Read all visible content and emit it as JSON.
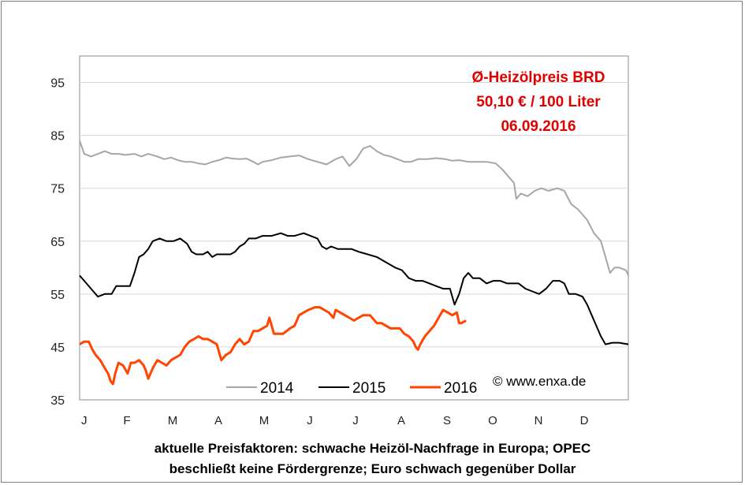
{
  "chart_data": {
    "type": "line",
    "yticks": [
      35,
      45,
      55,
      65,
      75,
      85,
      95
    ],
    "ylim": [
      35,
      100
    ],
    "months": [
      "J",
      "F",
      "M",
      "A",
      "M",
      "J",
      "J",
      "A",
      "S",
      "O",
      "N",
      "D"
    ],
    "grid": "horizontal",
    "legend_position": "bottom",
    "annotation": [
      "Ø-Heizölpreis BRD",
      "50,10 € / 100 Liter",
      "06.09.2016"
    ],
    "copyright": "© www.enxa.de",
    "series": [
      {
        "name": "2014",
        "color": "#a6a6a6",
        "points": [
          [
            0,
            84
          ],
          [
            0.1,
            81.5
          ],
          [
            0.25,
            81
          ],
          [
            0.4,
            81.5
          ],
          [
            0.55,
            82
          ],
          [
            0.7,
            81.5
          ],
          [
            0.85,
            81.5
          ],
          [
            1,
            81.3
          ],
          [
            1.2,
            81.5
          ],
          [
            1.35,
            81
          ],
          [
            1.5,
            81.5
          ],
          [
            1.7,
            81
          ],
          [
            1.85,
            80.5
          ],
          [
            2,
            80.8
          ],
          [
            2.15,
            80.3
          ],
          [
            2.3,
            80
          ],
          [
            2.45,
            80
          ],
          [
            2.6,
            79.7
          ],
          [
            2.75,
            79.5
          ],
          [
            2.9,
            80
          ],
          [
            3.05,
            80.3
          ],
          [
            3.2,
            80.8
          ],
          [
            3.35,
            80.6
          ],
          [
            3.5,
            80.5
          ],
          [
            3.65,
            80.6
          ],
          [
            3.8,
            80
          ],
          [
            3.9,
            79.5
          ],
          [
            4,
            80
          ],
          [
            4.2,
            80.3
          ],
          [
            4.4,
            80.8
          ],
          [
            4.6,
            81
          ],
          [
            4.8,
            81.2
          ],
          [
            5,
            80.5
          ],
          [
            5.2,
            80
          ],
          [
            5.4,
            79.5
          ],
          [
            5.6,
            80.5
          ],
          [
            5.75,
            81
          ],
          [
            5.9,
            79.2
          ],
          [
            6.05,
            80.5
          ],
          [
            6.2,
            82.5
          ],
          [
            6.35,
            83
          ],
          [
            6.5,
            82
          ],
          [
            6.65,
            81.3
          ],
          [
            6.8,
            81
          ],
          [
            6.95,
            80.5
          ],
          [
            7.1,
            80
          ],
          [
            7.25,
            80
          ],
          [
            7.4,
            80.5
          ],
          [
            7.6,
            80.5
          ],
          [
            7.8,
            80.7
          ],
          [
            8,
            80.5
          ],
          [
            8.15,
            80.2
          ],
          [
            8.3,
            80.3
          ],
          [
            8.5,
            80
          ],
          [
            8.7,
            80
          ],
          [
            8.9,
            80
          ],
          [
            9.1,
            79.7
          ],
          [
            9.25,
            78.5
          ],
          [
            9.4,
            77
          ],
          [
            9.5,
            76
          ],
          [
            9.55,
            73
          ],
          [
            9.65,
            74
          ],
          [
            9.8,
            73.5
          ],
          [
            9.95,
            74.5
          ],
          [
            10.1,
            75
          ],
          [
            10.25,
            74.5
          ],
          [
            10.45,
            75
          ],
          [
            10.6,
            74.5
          ],
          [
            10.75,
            72
          ],
          [
            10.9,
            71
          ],
          [
            11.1,
            69
          ],
          [
            11.25,
            66.5
          ],
          [
            11.4,
            65
          ],
          [
            11.5,
            62
          ],
          [
            11.6,
            59
          ],
          [
            11.7,
            60
          ],
          [
            11.8,
            60
          ],
          [
            11.95,
            59.5
          ],
          [
            12,
            58.5
          ]
        ]
      },
      {
        "name": "2015",
        "color": "#000000",
        "points": [
          [
            0,
            58.5
          ],
          [
            0.15,
            57
          ],
          [
            0.3,
            55.5
          ],
          [
            0.4,
            54.5
          ],
          [
            0.55,
            55
          ],
          [
            0.7,
            55
          ],
          [
            0.8,
            56.5
          ],
          [
            0.95,
            56.5
          ],
          [
            1.1,
            56.5
          ],
          [
            1.2,
            59
          ],
          [
            1.3,
            62
          ],
          [
            1.4,
            62.5
          ],
          [
            1.5,
            63.5
          ],
          [
            1.6,
            65
          ],
          [
            1.75,
            65.5
          ],
          [
            1.9,
            65
          ],
          [
            2.05,
            65
          ],
          [
            2.2,
            65.5
          ],
          [
            2.35,
            64.5
          ],
          [
            2.45,
            63
          ],
          [
            2.55,
            62.5
          ],
          [
            2.7,
            62.5
          ],
          [
            2.8,
            63
          ],
          [
            2.9,
            62
          ],
          [
            3,
            62.5
          ],
          [
            3.1,
            62.5
          ],
          [
            3.2,
            62.5
          ],
          [
            3.3,
            62.5
          ],
          [
            3.4,
            63
          ],
          [
            3.5,
            64
          ],
          [
            3.6,
            64.5
          ],
          [
            3.7,
            65.5
          ],
          [
            3.85,
            65.5
          ],
          [
            4,
            66
          ],
          [
            4.2,
            66
          ],
          [
            4.4,
            66.5
          ],
          [
            4.55,
            66
          ],
          [
            4.7,
            66
          ],
          [
            4.9,
            66.5
          ],
          [
            5.05,
            66
          ],
          [
            5.2,
            65.5
          ],
          [
            5.3,
            64
          ],
          [
            5.4,
            63.5
          ],
          [
            5.5,
            64
          ],
          [
            5.65,
            63.5
          ],
          [
            5.8,
            63.5
          ],
          [
            5.95,
            63.5
          ],
          [
            6.1,
            63
          ],
          [
            6.3,
            62.5
          ],
          [
            6.5,
            62
          ],
          [
            6.7,
            61
          ],
          [
            6.9,
            60
          ],
          [
            7.05,
            59.5
          ],
          [
            7.2,
            58
          ],
          [
            7.35,
            57.5
          ],
          [
            7.5,
            57.5
          ],
          [
            7.65,
            57
          ],
          [
            7.8,
            56.5
          ],
          [
            7.95,
            56
          ],
          [
            8.1,
            56
          ],
          [
            8.2,
            53
          ],
          [
            8.3,
            55
          ],
          [
            8.4,
            58
          ],
          [
            8.5,
            59
          ],
          [
            8.6,
            58
          ],
          [
            8.75,
            58
          ],
          [
            8.9,
            57
          ],
          [
            9.05,
            57.5
          ],
          [
            9.2,
            57.5
          ],
          [
            9.35,
            57
          ],
          [
            9.5,
            57
          ],
          [
            9.6,
            57
          ],
          [
            9.75,
            56
          ],
          [
            9.9,
            55.5
          ],
          [
            10.05,
            55
          ],
          [
            10.2,
            56
          ],
          [
            10.35,
            57.5
          ],
          [
            10.5,
            57.5
          ],
          [
            10.6,
            57
          ],
          [
            10.7,
            55
          ],
          [
            10.85,
            55
          ],
          [
            11,
            54.5
          ],
          [
            11.1,
            53
          ],
          [
            11.2,
            51
          ],
          [
            11.3,
            49
          ],
          [
            11.4,
            47
          ],
          [
            11.5,
            45.5
          ],
          [
            11.65,
            45.8
          ],
          [
            11.8,
            45.8
          ],
          [
            12,
            45.5
          ]
        ]
      },
      {
        "name": "2016",
        "color": "#ff4500",
        "points": [
          [
            0,
            45.5
          ],
          [
            0.1,
            46
          ],
          [
            0.2,
            46
          ],
          [
            0.28,
            44.5
          ],
          [
            0.35,
            43.5
          ],
          [
            0.45,
            42.5
          ],
          [
            0.55,
            41
          ],
          [
            0.62,
            40
          ],
          [
            0.68,
            38.5
          ],
          [
            0.73,
            38
          ],
          [
            0.78,
            40
          ],
          [
            0.85,
            42
          ],
          [
            0.95,
            41.5
          ],
          [
            1.05,
            40
          ],
          [
            1.12,
            42
          ],
          [
            1.2,
            42
          ],
          [
            1.3,
            42.5
          ],
          [
            1.4,
            41.5
          ],
          [
            1.45,
            40.5
          ],
          [
            1.5,
            39
          ],
          [
            1.6,
            41
          ],
          [
            1.7,
            42.5
          ],
          [
            1.8,
            42
          ],
          [
            1.9,
            41.5
          ],
          [
            2,
            42.5
          ],
          [
            2.1,
            43
          ],
          [
            2.2,
            43.5
          ],
          [
            2.3,
            45
          ],
          [
            2.4,
            46
          ],
          [
            2.5,
            46.5
          ],
          [
            2.6,
            47
          ],
          [
            2.7,
            46.5
          ],
          [
            2.8,
            46.5
          ],
          [
            2.9,
            46
          ],
          [
            3,
            45.5
          ],
          [
            3.05,
            44
          ],
          [
            3.1,
            42.5
          ],
          [
            3.2,
            43.5
          ],
          [
            3.3,
            44
          ],
          [
            3.4,
            45.5
          ],
          [
            3.5,
            46.5
          ],
          [
            3.6,
            45.5
          ],
          [
            3.7,
            46
          ],
          [
            3.8,
            48
          ],
          [
            3.9,
            48
          ],
          [
            4,
            48.5
          ],
          [
            4.1,
            49
          ],
          [
            4.15,
            50.5
          ],
          [
            4.2,
            49
          ],
          [
            4.25,
            47.5
          ],
          [
            4.35,
            47.5
          ],
          [
            4.45,
            47.5
          ],
          [
            4.6,
            48.5
          ],
          [
            4.7,
            49
          ],
          [
            4.8,
            51
          ],
          [
            4.9,
            51.5
          ],
          [
            5,
            52
          ],
          [
            5.15,
            52.5
          ],
          [
            5.25,
            52.5
          ],
          [
            5.35,
            52
          ],
          [
            5.45,
            51.5
          ],
          [
            5.55,
            50.5
          ],
          [
            5.6,
            52
          ],
          [
            5.7,
            51.5
          ],
          [
            5.8,
            51
          ],
          [
            5.9,
            50.5
          ],
          [
            6,
            50
          ],
          [
            6.1,
            50.5
          ],
          [
            6.2,
            51
          ],
          [
            6.35,
            51
          ],
          [
            6.5,
            49.5
          ],
          [
            6.6,
            49.5
          ],
          [
            6.7,
            49
          ],
          [
            6.8,
            48.5
          ],
          [
            6.9,
            48.5
          ],
          [
            7,
            48.5
          ],
          [
            7.1,
            47.5
          ],
          [
            7.2,
            47
          ],
          [
            7.3,
            46
          ],
          [
            7.35,
            45
          ],
          [
            7.4,
            44.5
          ],
          [
            7.45,
            45.5
          ],
          [
            7.55,
            47
          ],
          [
            7.65,
            48
          ],
          [
            7.7,
            48.5
          ],
          [
            7.75,
            49
          ],
          [
            7.85,
            50.5
          ],
          [
            7.95,
            52
          ],
          [
            8.05,
            51.5
          ],
          [
            8.15,
            51
          ],
          [
            8.25,
            51.5
          ],
          [
            8.3,
            49.5
          ],
          [
            8.35,
            49.5
          ],
          [
            8.45,
            50
          ]
        ]
      }
    ]
  },
  "caption": [
    "aktuelle Preisfaktoren: schwache Heizöl-Nachfrage in Europa;  OPEC",
    "beschließt keine Fördergrenze; Euro schwach gegenüber Dollar"
  ]
}
